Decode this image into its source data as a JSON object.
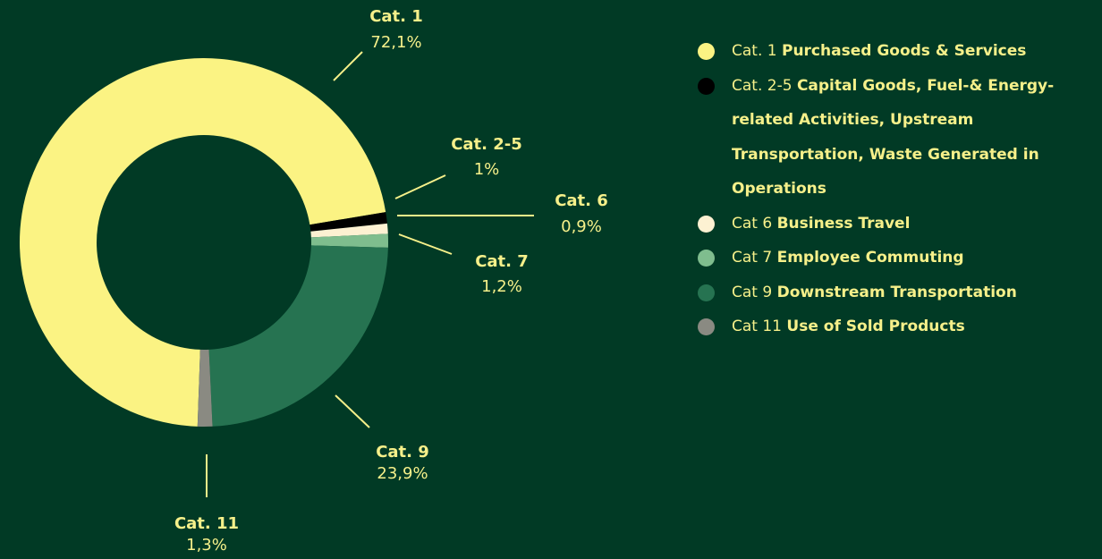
{
  "chart_data": {
    "type": "pie",
    "categories": [
      "Cat. 1",
      "Cat. 2-5",
      "Cat. 6",
      "Cat. 7",
      "Cat. 9",
      "Cat. 11"
    ],
    "values": [
      72.1,
      1,
      0.9,
      1.2,
      23.9,
      1.3
    ],
    "value_labels": [
      "72,1%",
      "1%",
      "0,9%",
      "1,2%",
      "23,9%",
      "1,3%"
    ],
    "colors": [
      "#fbf383",
      "#000000",
      "#fdf1d2",
      "#7fbd8e",
      "#267351",
      "#8a8a82"
    ],
    "legend": [
      {
        "code": "Cat. 1",
        "label": "Purchased Goods & Services"
      },
      {
        "code": "Cat. 2-5",
        "label": "Capital Goods, Fuel-& Energy-related Activities, Upstream Transportation, Waste Generated in Operations"
      },
      {
        "code": "Cat 6",
        "label": "Business Travel"
      },
      {
        "code": "Cat 7",
        "label": "Employee Commuting"
      },
      {
        "code": "Cat 9",
        "label": "Downstream Transportation"
      },
      {
        "code": "Cat 11",
        "label": "Use of Sold Products"
      }
    ]
  }
}
